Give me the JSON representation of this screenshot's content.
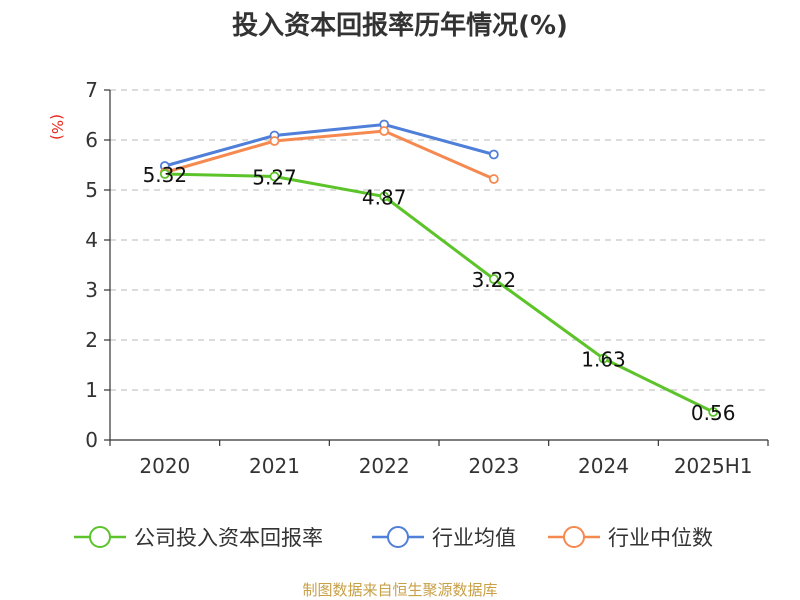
{
  "chart_data": {
    "type": "line",
    "title": "投入资本回报率历年情况(%)",
    "ylabel": "(%)",
    "categories": [
      "2020",
      "2021",
      "2022",
      "2023",
      "2024",
      "2025H1"
    ],
    "ylim": [
      0,
      7
    ],
    "yticks": [
      "0",
      "1",
      "2",
      "3",
      "4",
      "5",
      "6",
      "7"
    ],
    "grid": true,
    "legend_position": "bottom",
    "series": [
      {
        "name": "公司投入资本回报率",
        "color": "#5cc42a",
        "values": [
          5.32,
          5.27,
          4.87,
          3.22,
          1.63,
          0.56
        ],
        "labels": [
          "5.32",
          "5.27",
          "4.87",
          "3.22",
          "1.63",
          "0.56"
        ]
      },
      {
        "name": "行业均值",
        "color": "#4f7fd8",
        "values": [
          5.48,
          6.09,
          6.31,
          5.71,
          null,
          null
        ]
      },
      {
        "name": "行业中位数",
        "color": "#f5894f",
        "values": [
          5.35,
          5.98,
          6.18,
          5.22,
          null,
          null
        ]
      }
    ],
    "source": "制图数据来自恒生聚源数据库"
  }
}
